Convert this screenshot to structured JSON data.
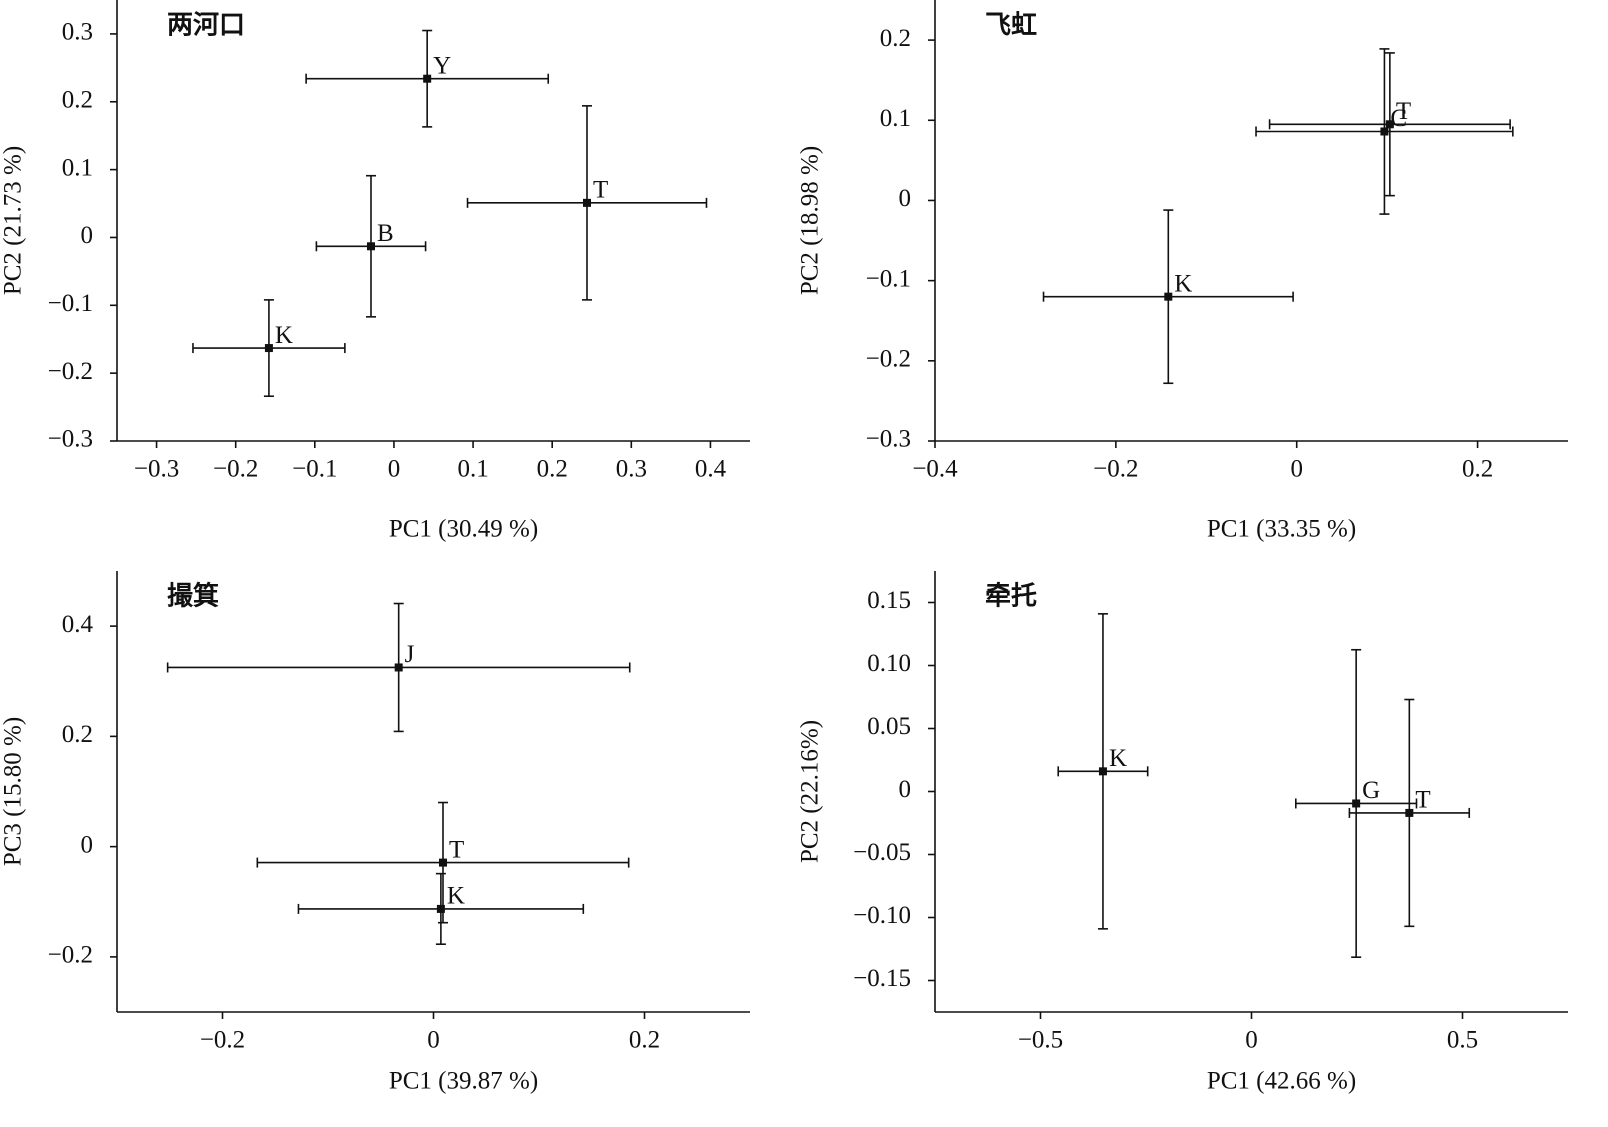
{
  "chart_data": [
    {
      "type": "scatter",
      "title": "两河口",
      "xlabel": "PC1 (30.49 %)",
      "ylabel": "PC2 (21.73 %)",
      "xlim": [
        -0.35,
        0.45
      ],
      "ylim": [
        -0.3,
        0.35
      ],
      "xticks": [
        {
          "value": -0.3,
          "label": "−0.3"
        },
        {
          "value": -0.2,
          "label": "−0.2"
        },
        {
          "value": -0.1,
          "label": "−0.1"
        },
        0,
        0.1,
        0.2,
        0.3,
        0.4
      ],
      "yticks": [
        {
          "value": -0.3,
          "label": "−0.3"
        },
        {
          "value": -0.2,
          "label": "−0.2"
        },
        {
          "value": -0.1,
          "label": "−0.1"
        },
        0,
        0.1,
        0.2,
        0.3
      ],
      "labels": [
        "Y",
        "T",
        "B",
        "K"
      ],
      "x": [
        0.042,
        0.244,
        -0.029,
        -0.158
      ],
      "y": [
        0.234,
        0.051,
        -0.013,
        -0.163
      ],
      "xerr": [
        0.153,
        0.151,
        0.069,
        0.096
      ],
      "yerr": [
        0.071,
        0.143,
        0.104,
        0.071
      ]
    },
    {
      "type": "scatter",
      "title": "飞虹",
      "xlabel": "PC1 (33.35 %)",
      "ylabel": "PC2 (18.98 %)",
      "xlim": [
        -0.4,
        0.3
      ],
      "ylim": [
        -0.3,
        0.25
      ],
      "xticks": [
        {
          "value": -0.4,
          "label": "−0.4"
        },
        {
          "value": -0.2,
          "label": "−0.2"
        },
        0,
        0.2
      ],
      "yticks": [
        {
          "value": -0.3,
          "label": "−0.3"
        },
        {
          "value": -0.2,
          "label": "−0.2"
        },
        {
          "value": -0.1,
          "label": "−0.1"
        },
        0,
        0.1,
        0.2
      ],
      "labels": [
        "T",
        "C",
        "K"
      ],
      "x": [
        0.103,
        0.097,
        -0.142
      ],
      "y": [
        0.095,
        0.086,
        -0.12
      ],
      "xerr": [
        0.133,
        0.142,
        0.138
      ],
      "yerr": [
        0.089,
        0.103,
        0.108
      ]
    },
    {
      "type": "scatter",
      "title": "撮箕",
      "xlabel": "PC1 (39.87 %)",
      "ylabel": "PC3 (15.80 %)",
      "xlim": [
        -0.3,
        0.3
      ],
      "ylim": [
        -0.3,
        0.5
      ],
      "xticks": [
        {
          "value": -0.2,
          "label": "−0.2"
        },
        0,
        0.2
      ],
      "yticks": [
        {
          "value": -0.2,
          "label": "−0.2"
        },
        0,
        0.2,
        0.4
      ],
      "labels": [
        "J",
        "T",
        "K"
      ],
      "x": [
        -0.033,
        0.009,
        0.007
      ],
      "y": [
        0.325,
        -0.029,
        -0.113
      ],
      "xerr": [
        0.219,
        0.176,
        0.135
      ],
      "yerr": [
        0.116,
        0.109,
        0.064
      ]
    },
    {
      "type": "scatter",
      "title": "牵托",
      "xlabel": "PC1 (42.66 %)",
      "ylabel": "PC2 (22.16%)",
      "xlim": [
        -0.75,
        0.75
      ],
      "ylim": [
        -0.175,
        0.175
      ],
      "xticks": [
        {
          "value": -0.5,
          "label": "−0.5"
        },
        0,
        0.5
      ],
      "yticks": [
        {
          "value": -0.15,
          "label": "−0.15"
        },
        {
          "value": -0.1,
          "label": "−0.10"
        },
        {
          "value": -0.05,
          "label": "−0.05"
        },
        0,
        0.05,
        {
          "value": 0.1,
          "label": "0.10"
        },
        0.15
      ],
      "labels": [
        "K",
        "G",
        "T"
      ],
      "x": [
        -0.352,
        0.248,
        0.374
      ],
      "y": [
        0.016,
        -0.0095,
        -0.017
      ],
      "xerr": [
        0.106,
        0.143,
        0.142
      ],
      "yerr": [
        0.125,
        0.122,
        0.09
      ]
    }
  ]
}
